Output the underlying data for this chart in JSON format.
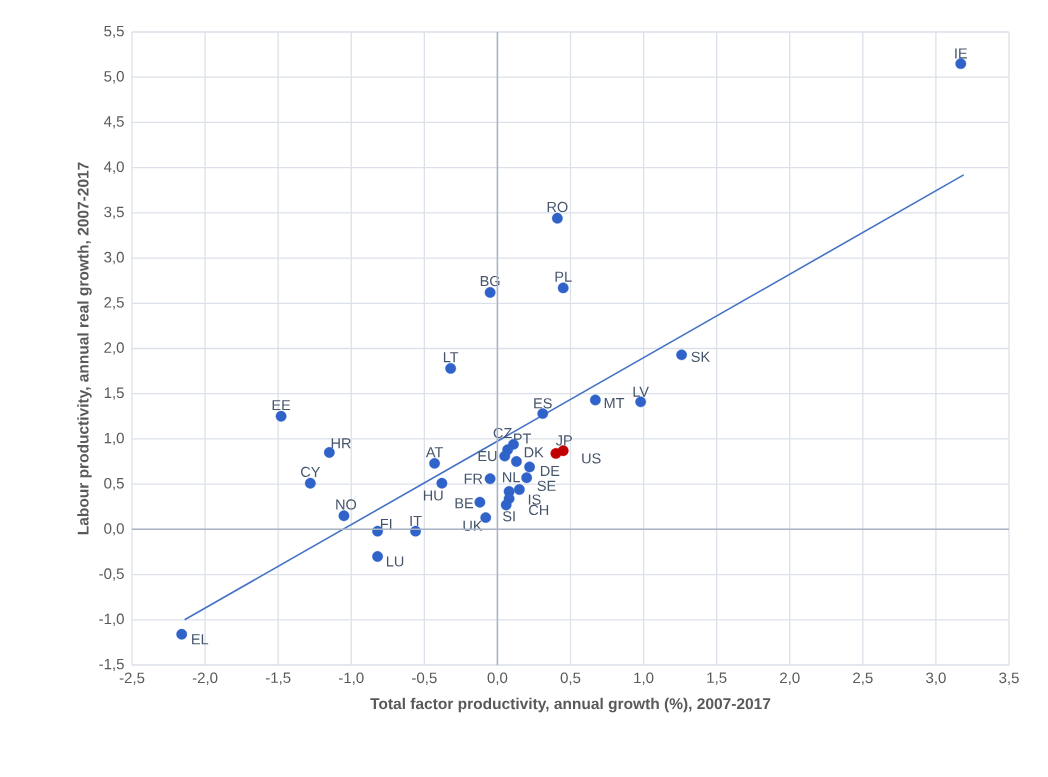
{
  "chart_data": {
    "type": "scatter",
    "xlabel": "Total factor productivity, annual growth (%), 2007-2017",
    "ylabel": "Labour productivity, annual real growth, 2007-2017",
    "xlim": [
      -2.5,
      3.5
    ],
    "xticks": [
      {
        "value": -2.5,
        "label": "-2,5"
      },
      {
        "value": -2.0,
        "label": "-2,0"
      },
      {
        "value": -1.5,
        "label": "-1,5"
      },
      {
        "value": -1.0,
        "label": "-1,0"
      },
      {
        "value": -0.5,
        "label": "-0,5"
      },
      {
        "value": 0.0,
        "label": "0,0"
      },
      {
        "value": 0.5,
        "label": "0,5"
      },
      {
        "value": 1.0,
        "label": "1,0"
      },
      {
        "value": 1.5,
        "label": "1,5"
      },
      {
        "value": 2.0,
        "label": "2,0"
      },
      {
        "value": 2.5,
        "label": "2,5"
      },
      {
        "value": 3.0,
        "label": "3,0"
      },
      {
        "value": 3.5,
        "label": "3,5"
      }
    ],
    "ylim": [
      -1.5,
      5.5
    ],
    "yticks": [
      {
        "value": -1.5,
        "label": "-1,5"
      },
      {
        "value": -1.0,
        "label": "-1,0"
      },
      {
        "value": -0.5,
        "label": "-0,5"
      },
      {
        "value": 0.0,
        "label": "0,0"
      },
      {
        "value": 0.5,
        "label": "0,5"
      },
      {
        "value": 1.0,
        "label": "1,0"
      },
      {
        "value": 1.5,
        "label": "1,5"
      },
      {
        "value": 2.0,
        "label": "2,0"
      },
      {
        "value": 2.5,
        "label": "2,5"
      },
      {
        "value": 3.0,
        "label": "3,0"
      },
      {
        "value": 3.5,
        "label": "3,5"
      },
      {
        "value": 4.0,
        "label": "4,0"
      },
      {
        "value": 4.5,
        "label": "4,5"
      },
      {
        "value": 5.0,
        "label": "5,0"
      },
      {
        "value": 5.5,
        "label": "5,5"
      }
    ],
    "grid": true,
    "series": [
      {
        "color": "#2f63c9",
        "x": [
          3.17,
          1.26,
          0.98,
          0.67,
          0.41,
          0.45,
          -0.05,
          -0.32,
          -1.48,
          -1.15,
          -1.28,
          -1.05,
          -0.82,
          -0.56,
          -0.82,
          -2.16,
          0.31,
          -0.43,
          -0.38,
          -0.05,
          -0.12,
          -0.08,
          0.11,
          0.07,
          0.05,
          0.13,
          0.22,
          0.2,
          0.08,
          0.15,
          0.08,
          0.06
        ],
        "values": [
          5.15,
          1.93,
          1.41,
          1.43,
          3.44,
          2.67,
          2.62,
          1.78,
          1.25,
          0.85,
          0.51,
          0.15,
          -0.02,
          -0.02,
          -0.3,
          -1.16,
          1.28,
          0.73,
          0.51,
          0.56,
          0.3,
          0.13,
          0.94,
          0.88,
          0.81,
          0.75,
          0.69,
          0.57,
          0.42,
          0.44,
          0.34,
          0.27
        ]
      },
      {
        "color": "#c00000",
        "x": [
          0.45,
          0.4
        ],
        "values": [
          0.87,
          0.84
        ]
      },
      {
        "type": "line",
        "color": "#4472c4",
        "x": [
          -2.14,
          3.19
        ],
        "values": [
          -1.0,
          3.92
        ]
      }
    ],
    "annotations": [
      {
        "text": "IE",
        "x": 3.17,
        "y": 5.15
      },
      {
        "text": "SK",
        "x": 1.26,
        "y": 1.93
      },
      {
        "text": "LV",
        "x": 0.98,
        "y": 1.41
      },
      {
        "text": "MT",
        "x": 0.67,
        "y": 1.43
      },
      {
        "text": "RO",
        "x": 0.41,
        "y": 3.44
      },
      {
        "text": "PL",
        "x": 0.45,
        "y": 2.67
      },
      {
        "text": "BG",
        "x": -0.05,
        "y": 2.62
      },
      {
        "text": "LT",
        "x": -0.32,
        "y": 1.78
      },
      {
        "text": "EE",
        "x": -1.48,
        "y": 1.25
      },
      {
        "text": "HR",
        "x": -1.15,
        "y": 0.85
      },
      {
        "text": "CY",
        "x": -1.28,
        "y": 0.51
      },
      {
        "text": "NO",
        "x": -1.05,
        "y": 0.15
      },
      {
        "text": "FI",
        "x": -0.82,
        "y": -0.02
      },
      {
        "text": "IT",
        "x": -0.56,
        "y": -0.02
      },
      {
        "text": "LU",
        "x": -0.82,
        "y": -0.3
      },
      {
        "text": "EL",
        "x": -2.16,
        "y": -1.16
      },
      {
        "text": "ES",
        "x": 0.31,
        "y": 1.28
      },
      {
        "text": "AT",
        "x": -0.43,
        "y": 0.73
      },
      {
        "text": "HU",
        "x": -0.38,
        "y": 0.51
      },
      {
        "text": "FR",
        "x": -0.05,
        "y": 0.56
      },
      {
        "text": "BE",
        "x": -0.12,
        "y": 0.3
      },
      {
        "text": "UK",
        "x": -0.08,
        "y": 0.13
      },
      {
        "text": "CZ",
        "x": 0.11,
        "y": 0.94
      },
      {
        "text": "PT",
        "x": 0.07,
        "y": 0.88
      },
      {
        "text": "EU",
        "x": 0.05,
        "y": 0.81
      },
      {
        "text": "DK",
        "x": 0.13,
        "y": 0.75
      },
      {
        "text": "DE",
        "x": 0.22,
        "y": 0.69
      },
      {
        "text": "SE",
        "x": 0.2,
        "y": 0.57
      },
      {
        "text": "NL",
        "x": 0.08,
        "y": 0.42
      },
      {
        "text": "IS",
        "x": 0.15,
        "y": 0.44
      },
      {
        "text": "CH",
        "x": 0.08,
        "y": 0.34
      },
      {
        "text": "SI",
        "x": 0.06,
        "y": 0.27
      },
      {
        "text": "JP",
        "x": 0.45,
        "y": 0.87
      },
      {
        "text": "US",
        "x": 0.4,
        "y": 0.84
      }
    ]
  }
}
